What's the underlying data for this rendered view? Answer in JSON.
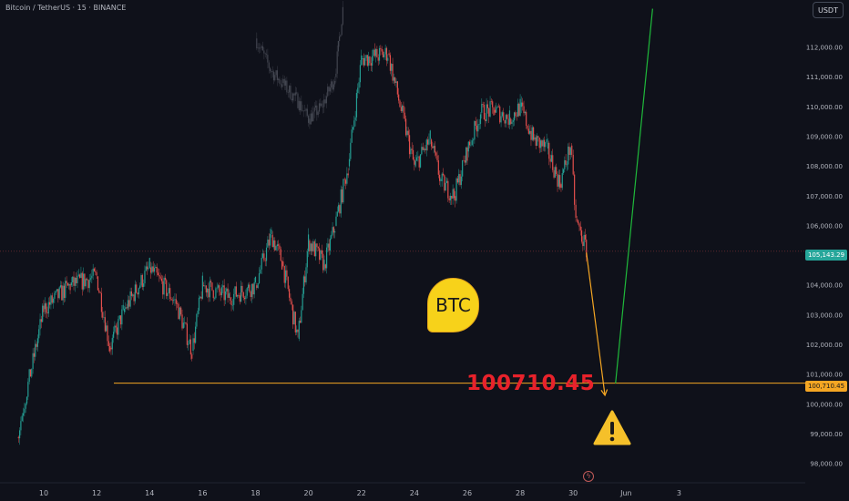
{
  "header": {
    "symbol": "Bitcoin / TetherUS · 15 · BINANCE",
    "currency": "USDT"
  },
  "annotations": {
    "target_value_text": "100710.45",
    "badge_text": "BTC",
    "warning_icon": "warning-triangle-icon",
    "bolt_icon": "lightning-icon"
  },
  "colors": {
    "background": "#0f111a",
    "up_candle": "#26a69a",
    "down_candle": "#ef5350",
    "ghost_candle": "#5d606b",
    "target_line": "#f5a623",
    "projection_down": "#f5a623",
    "projection_up": "#1fba3b",
    "current_price_tag": "#26a69a",
    "target_price_tag": "#f5a623",
    "label_red": "#e8222b"
  },
  "chart_data": {
    "type": "candlestick",
    "title": "Bitcoin / TetherUS · 15 · BINANCE",
    "y_axis": {
      "ticks": [
        "112,000.00",
        "111,000.00",
        "110,000.00",
        "109,000.00",
        "108,000.00",
        "107,000.00",
        "106,000.00",
        "105,000.00",
        "104,000.00",
        "103,000.00",
        "102,000.00",
        "101,000.00",
        "100,000.00",
        "99,000.00",
        "98,000.00"
      ],
      "range": [
        97900,
        113300
      ]
    },
    "x_axis": {
      "ticks": [
        "10",
        "12",
        "14",
        "16",
        "18",
        "20",
        "22",
        "24",
        "26",
        "28",
        "30",
        "Jun",
        "3"
      ]
    },
    "price_path": [
      {
        "x": "09",
        "y": 98900
      },
      {
        "x": "10",
        "y": 103200
      },
      {
        "x": "11",
        "y": 104000
      },
      {
        "x": "12",
        "y": 104300
      },
      {
        "x": "12.5",
        "y": 101900
      },
      {
        "x": "13",
        "y": 103100
      },
      {
        "x": "14",
        "y": 104600
      },
      {
        "x": "15",
        "y": 103400
      },
      {
        "x": "15.6",
        "y": 101800
      },
      {
        "x": "16",
        "y": 104000
      },
      {
        "x": "17",
        "y": 103600
      },
      {
        "x": "18",
        "y": 104000
      },
      {
        "x": "18.6",
        "y": 105700
      },
      {
        "x": "19",
        "y": 104800
      },
      {
        "x": "19.6",
        "y": 102200
      },
      {
        "x": "20",
        "y": 105500
      },
      {
        "x": "20.6",
        "y": 104700
      },
      {
        "x": "21",
        "y": 106000
      },
      {
        "x": "21.5",
        "y": 108000
      },
      {
        "x": "22",
        "y": 111600
      },
      {
        "x": "23",
        "y": 111800
      },
      {
        "x": "24",
        "y": 108000
      },
      {
        "x": "24.6",
        "y": 108900
      },
      {
        "x": "25",
        "y": 107500
      },
      {
        "x": "25.5",
        "y": 107000
      },
      {
        "x": "26",
        "y": 108500
      },
      {
        "x": "26.5",
        "y": 109800
      },
      {
        "x": "27",
        "y": 109900
      },
      {
        "x": "27.6",
        "y": 109600
      },
      {
        "x": "28",
        "y": 110000
      },
      {
        "x": "28.5",
        "y": 108900
      },
      {
        "x": "29",
        "y": 108600
      },
      {
        "x": "29.5",
        "y": 107400
      },
      {
        "x": "29.9",
        "y": 108700
      },
      {
        "x": "30.1",
        "y": 106200
      },
      {
        "x": "30.5",
        "y": 105200
      }
    ],
    "ghost_path": [
      {
        "x": "18",
        "y": 112300
      },
      {
        "x": "18.6",
        "y": 111200
      },
      {
        "x": "19",
        "y": 110800
      },
      {
        "x": "19.6",
        "y": 110200
      },
      {
        "x": "20",
        "y": 109600
      },
      {
        "x": "20.5",
        "y": 110000
      },
      {
        "x": "21",
        "y": 111000
      },
      {
        "x": "21.3",
        "y": 113300
      }
    ],
    "current_price": {
      "value": 105143.29,
      "label": "105,143.29"
    },
    "target_level": {
      "value": 100710.45,
      "label": "100,710.45"
    },
    "projection": [
      {
        "from": {
          "x": "30.5",
          "y": 105100
        },
        "to": {
          "x": "31.2",
          "y": 100300
        },
        "direction": "down"
      },
      {
        "from": {
          "x": "31.6",
          "y": 100700
        },
        "to": {
          "x": "33",
          "y": 113300
        },
        "direction": "up"
      }
    ]
  }
}
